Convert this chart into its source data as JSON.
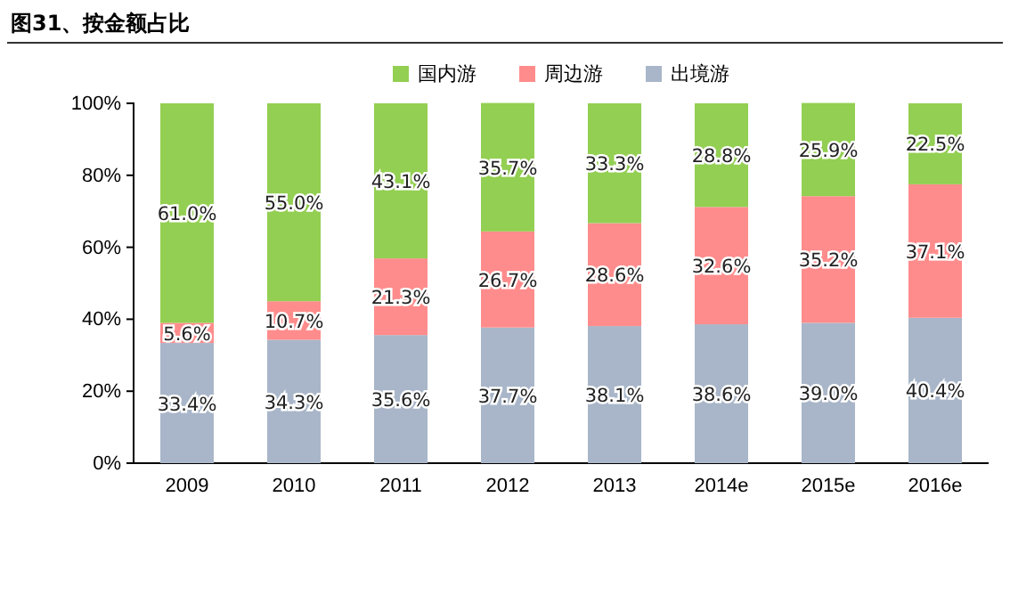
{
  "chart_data": {
    "type": "bar",
    "title": "图31、按金额占比",
    "stacked": true,
    "legend": "top",
    "grid": false,
    "categories": [
      "2009",
      "2010",
      "2011",
      "2012",
      "2013",
      "2014e",
      "2015e",
      "2016e"
    ],
    "ylim": [
      0,
      100
    ],
    "yticks": [
      {
        "value": 0,
        "label": "0%"
      },
      {
        "value": 20,
        "label": "20%"
      },
      {
        "value": 40,
        "label": "40%"
      },
      {
        "value": 60,
        "label": "60%"
      },
      {
        "value": 80,
        "label": "80%"
      },
      {
        "value": 100,
        "label": "100%"
      }
    ],
    "series": [
      {
        "name": "出境游",
        "color": "#a9b6c9",
        "values": [
          33.4,
          34.3,
          35.6,
          37.7,
          38.1,
          38.6,
          39.0,
          40.4
        ],
        "value_labels": [
          "33.4%",
          "34.3%",
          "35.6%",
          "37.7%",
          "38.1%",
          "38.6%",
          "39.0%",
          "40.4%"
        ]
      },
      {
        "name": "周边游",
        "color": "#ff8c8c",
        "values": [
          5.6,
          10.7,
          21.3,
          26.7,
          28.6,
          32.6,
          35.2,
          37.1
        ],
        "value_labels": [
          "5.6%",
          "10.7%",
          "21.3%",
          "26.7%",
          "28.6%",
          "32.6%",
          "35.2%",
          "37.1%"
        ]
      },
      {
        "name": "国内游",
        "color": "#93cf52",
        "values": [
          61.0,
          55.0,
          43.1,
          35.7,
          33.3,
          28.8,
          25.9,
          22.5
        ],
        "value_labels": [
          "61.0%",
          "55.0%",
          "43.1%",
          "35.7%",
          "33.3%",
          "28.8%",
          "25.9%",
          "22.5%"
        ]
      }
    ]
  }
}
